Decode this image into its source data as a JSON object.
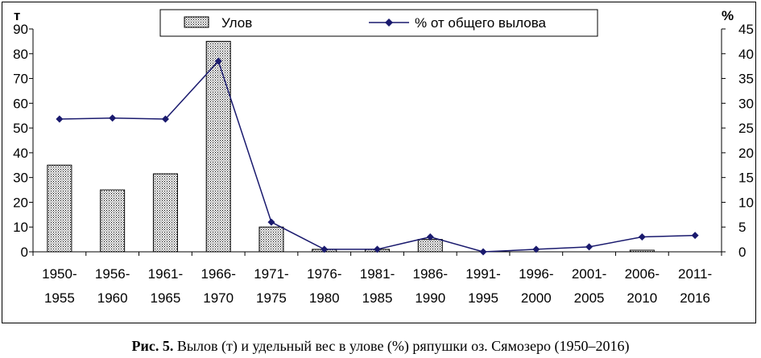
{
  "caption": {
    "label": "Рис. 5.",
    "text": "Вылов (т) и удельный вес в улове (%) ряпушки оз. Сямозеро (1950–2016)"
  },
  "colors": {
    "bar_fill": "#ffffff",
    "bar_dots": "#000000",
    "line": "#1a1a6e",
    "axis": "#000000"
  },
  "chart_data": {
    "type": "bar+line",
    "categories": [
      [
        "1950-",
        "1955"
      ],
      [
        "1956-",
        "1960"
      ],
      [
        "1961-",
        "1965"
      ],
      [
        "1966-",
        "1970"
      ],
      [
        "1971-",
        "1975"
      ],
      [
        "1976-",
        "1980"
      ],
      [
        "1981-",
        "1985"
      ],
      [
        "1986-",
        "1990"
      ],
      [
        "1991-",
        "1995"
      ],
      [
        "1996-",
        "2000"
      ],
      [
        "2001-",
        "2005"
      ],
      [
        "2006-",
        "2010"
      ],
      [
        "2011-",
        "2016"
      ]
    ],
    "series": [
      {
        "name": "Улов",
        "type": "bar",
        "axis": "left",
        "values": [
          35,
          25,
          31.5,
          85,
          10,
          1,
          1,
          5,
          0,
          0,
          0,
          0.4,
          0
        ]
      },
      {
        "name": "% от общего вылова",
        "type": "line",
        "axis": "right",
        "marker": "diamond",
        "values": [
          26.8,
          27,
          26.8,
          38.5,
          6,
          0.5,
          0.5,
          3,
          0,
          0.5,
          1,
          3,
          3.3
        ]
      }
    ],
    "y_left": {
      "unit": "т",
      "ylim": [
        0,
        90
      ],
      "ticks": [
        0,
        10,
        20,
        30,
        40,
        50,
        60,
        70,
        80,
        90
      ]
    },
    "y_right": {
      "unit": "%",
      "ylim": [
        0,
        45
      ],
      "ticks": [
        0,
        5,
        10,
        15,
        20,
        25,
        30,
        35,
        40,
        45
      ]
    },
    "legend": {
      "placement": "top-center"
    },
    "grid": false
  }
}
